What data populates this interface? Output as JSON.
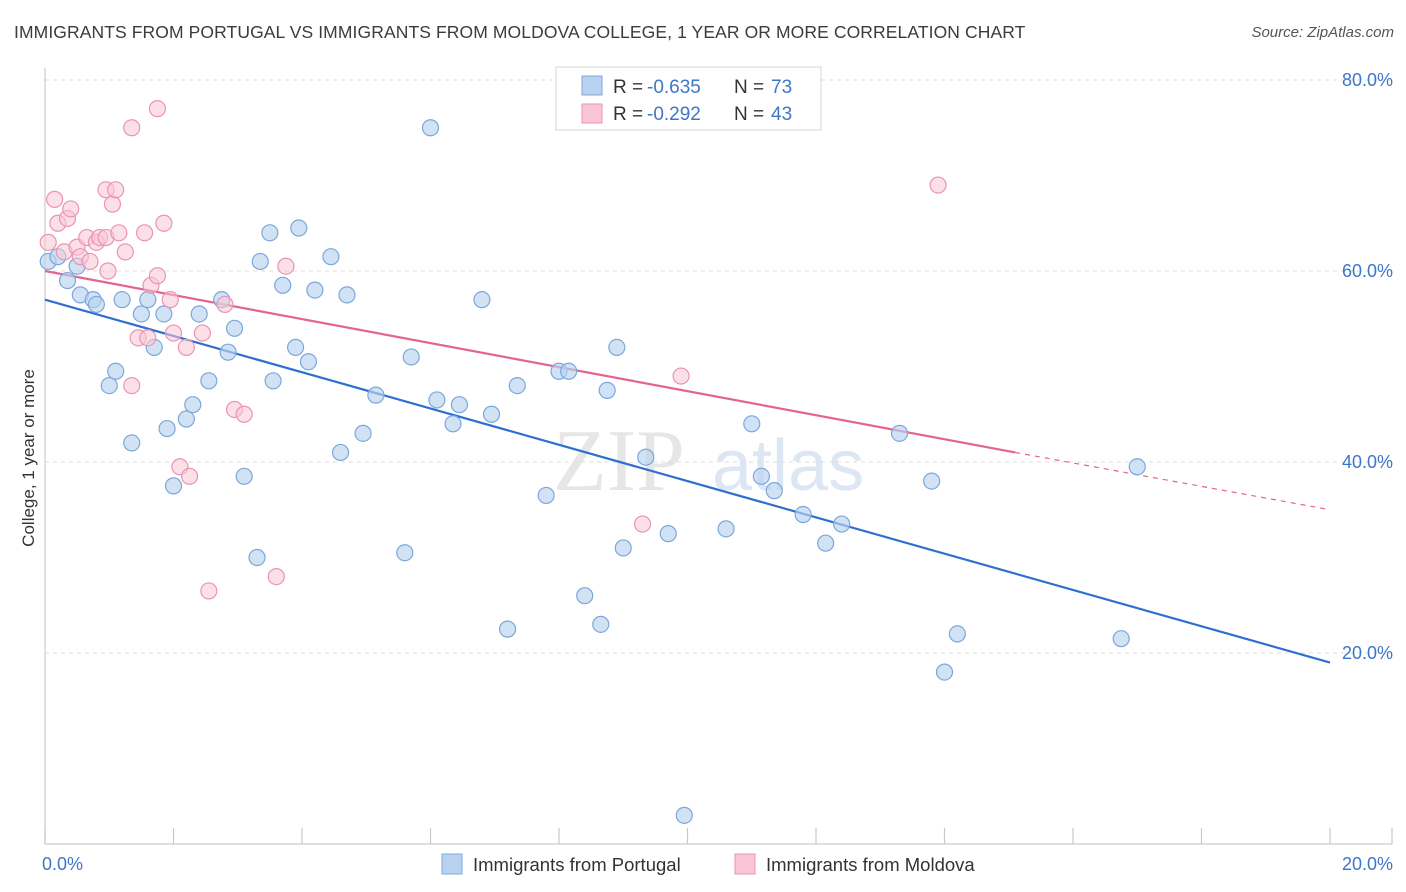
{
  "title": "IMMIGRANTS FROM PORTUGAL VS IMMIGRANTS FROM MOLDOVA COLLEGE, 1 YEAR OR MORE CORRELATION CHART",
  "source": "Source: ZipAtlas.com",
  "watermark": {
    "zip": "ZIP",
    "atlas": "atlas"
  },
  "legend": {
    "portugal": {
      "r_label": "R =",
      "r_value": "-0.635",
      "n_label": "N =",
      "n_value": "73"
    },
    "moldova": {
      "r_label": "R =",
      "r_value": "-0.292",
      "n_label": "N =",
      "n_value": "43"
    }
  },
  "bottom_legend": {
    "portugal": "Immigrants from Portugal",
    "moldova": "Immigrants from Moldova"
  },
  "colors": {
    "portugal_fill": "#b8d2f0",
    "portugal_stroke": "#7ba7dc",
    "portugal_line": "#2e6fcf",
    "moldova_fill": "#f9c6d6",
    "moldova_stroke": "#ec93b1",
    "moldova_line": "#e3648f",
    "tick_text": "#3d76c8"
  },
  "chart_data": {
    "type": "scatter",
    "title": "IMMIGRANTS FROM PORTUGAL VS IMMIGRANTS FROM MOLDOVA COLLEGE, 1 YEAR OR MORE CORRELATION CHART",
    "xlabel": "",
    "ylabel": "College, 1 year or more",
    "xlim": [
      0,
      20
    ],
    "ylim": [
      0,
      82
    ],
    "x_tick_labels": [
      "0.0%",
      "20.0%"
    ],
    "y_ticks": [
      20,
      40,
      60,
      80
    ],
    "y_tick_labels": [
      "20.0%",
      "40.0%",
      "60.0%",
      "80.0%"
    ],
    "grid": true,
    "series": [
      {
        "name": "Immigrants from Portugal",
        "r": -0.635,
        "n": 73,
        "trend": {
          "x": [
            0,
            20
          ],
          "y": [
            57.0,
            19.0
          ]
        },
        "points": [
          [
            0.05,
            61.0
          ],
          [
            0.2,
            61.5
          ],
          [
            0.35,
            59.0
          ],
          [
            0.5,
            60.5
          ],
          [
            0.55,
            57.5
          ],
          [
            0.75,
            57.0
          ],
          [
            0.8,
            56.5
          ],
          [
            1.0,
            48.0
          ],
          [
            1.1,
            49.5
          ],
          [
            1.2,
            57.0
          ],
          [
            1.35,
            42.0
          ],
          [
            1.5,
            55.5
          ],
          [
            1.6,
            57.0
          ],
          [
            1.7,
            52.0
          ],
          [
            1.85,
            55.5
          ],
          [
            1.9,
            43.5
          ],
          [
            2.0,
            37.5
          ],
          [
            2.2,
            44.5
          ],
          [
            2.3,
            46.0
          ],
          [
            2.4,
            55.5
          ],
          [
            2.55,
            48.5
          ],
          [
            2.75,
            57.0
          ],
          [
            2.85,
            51.5
          ],
          [
            2.95,
            54.0
          ],
          [
            3.1,
            38.5
          ],
          [
            3.3,
            30.0
          ],
          [
            3.35,
            61.0
          ],
          [
            3.5,
            64.0
          ],
          [
            3.55,
            48.5
          ],
          [
            3.7,
            58.5
          ],
          [
            3.9,
            52.0
          ],
          [
            3.95,
            64.5
          ],
          [
            4.1,
            50.5
          ],
          [
            4.2,
            58.0
          ],
          [
            4.45,
            61.5
          ],
          [
            4.6,
            41.0
          ],
          [
            4.7,
            57.5
          ],
          [
            4.95,
            43.0
          ],
          [
            5.15,
            47.0
          ],
          [
            5.6,
            30.5
          ],
          [
            5.7,
            51.0
          ],
          [
            6.0,
            75.0
          ],
          [
            6.1,
            46.5
          ],
          [
            6.35,
            44.0
          ],
          [
            6.45,
            46.0
          ],
          [
            6.8,
            57.0
          ],
          [
            6.95,
            45.0
          ],
          [
            7.2,
            22.5
          ],
          [
            7.35,
            48.0
          ],
          [
            7.8,
            36.5
          ],
          [
            8.0,
            49.5
          ],
          [
            8.15,
            49.5
          ],
          [
            8.4,
            26.0
          ],
          [
            8.65,
            23.0
          ],
          [
            8.75,
            47.5
          ],
          [
            8.9,
            52.0
          ],
          [
            9.0,
            31.0
          ],
          [
            9.35,
            40.5
          ],
          [
            9.7,
            32.5
          ],
          [
            9.95,
            3.0
          ],
          [
            10.6,
            33.0
          ],
          [
            11.0,
            44.0
          ],
          [
            11.15,
            38.5
          ],
          [
            11.35,
            37.0
          ],
          [
            11.8,
            34.5
          ],
          [
            12.15,
            31.5
          ],
          [
            12.4,
            33.5
          ],
          [
            13.3,
            43.0
          ],
          [
            13.8,
            38.0
          ],
          [
            14.0,
            18.0
          ],
          [
            14.2,
            22.0
          ],
          [
            16.75,
            21.5
          ],
          [
            17.0,
            39.5
          ]
        ]
      },
      {
        "name": "Immigrants from Moldova",
        "r": -0.292,
        "n": 43,
        "trend": {
          "x": [
            0,
            15.1
          ],
          "y": [
            60.0,
            41.0
          ],
          "dashed_extension": {
            "x": [
              15.1,
              20
            ],
            "y": [
              41.0,
              35.0
            ]
          }
        },
        "points": [
          [
            0.05,
            63.0
          ],
          [
            0.15,
            67.5
          ],
          [
            0.2,
            65.0
          ],
          [
            0.3,
            62.0
          ],
          [
            0.35,
            65.5
          ],
          [
            0.4,
            66.5
          ],
          [
            0.5,
            62.5
          ],
          [
            0.55,
            61.5
          ],
          [
            0.65,
            63.5
          ],
          [
            0.7,
            61.0
          ],
          [
            0.8,
            63.0
          ],
          [
            0.85,
            63.5
          ],
          [
            0.95,
            63.5
          ],
          [
            0.95,
            68.5
          ],
          [
            0.98,
            60.0
          ],
          [
            1.05,
            67.0
          ],
          [
            1.1,
            68.5
          ],
          [
            1.15,
            64.0
          ],
          [
            1.25,
            62.0
          ],
          [
            1.35,
            48.0
          ],
          [
            1.35,
            75.0
          ],
          [
            1.45,
            53.0
          ],
          [
            1.55,
            64.0
          ],
          [
            1.6,
            53.0
          ],
          [
            1.65,
            58.5
          ],
          [
            1.75,
            59.5
          ],
          [
            1.75,
            77.0
          ],
          [
            1.85,
            65.0
          ],
          [
            1.95,
            57.0
          ],
          [
            2.0,
            53.5
          ],
          [
            2.1,
            39.5
          ],
          [
            2.2,
            52.0
          ],
          [
            2.25,
            38.5
          ],
          [
            2.45,
            53.5
          ],
          [
            2.55,
            26.5
          ],
          [
            2.8,
            56.5
          ],
          [
            2.95,
            45.5
          ],
          [
            3.1,
            45.0
          ],
          [
            3.6,
            28.0
          ],
          [
            3.75,
            60.5
          ],
          [
            9.3,
            33.5
          ],
          [
            9.9,
            49.0
          ],
          [
            13.9,
            69.0
          ]
        ]
      }
    ]
  }
}
